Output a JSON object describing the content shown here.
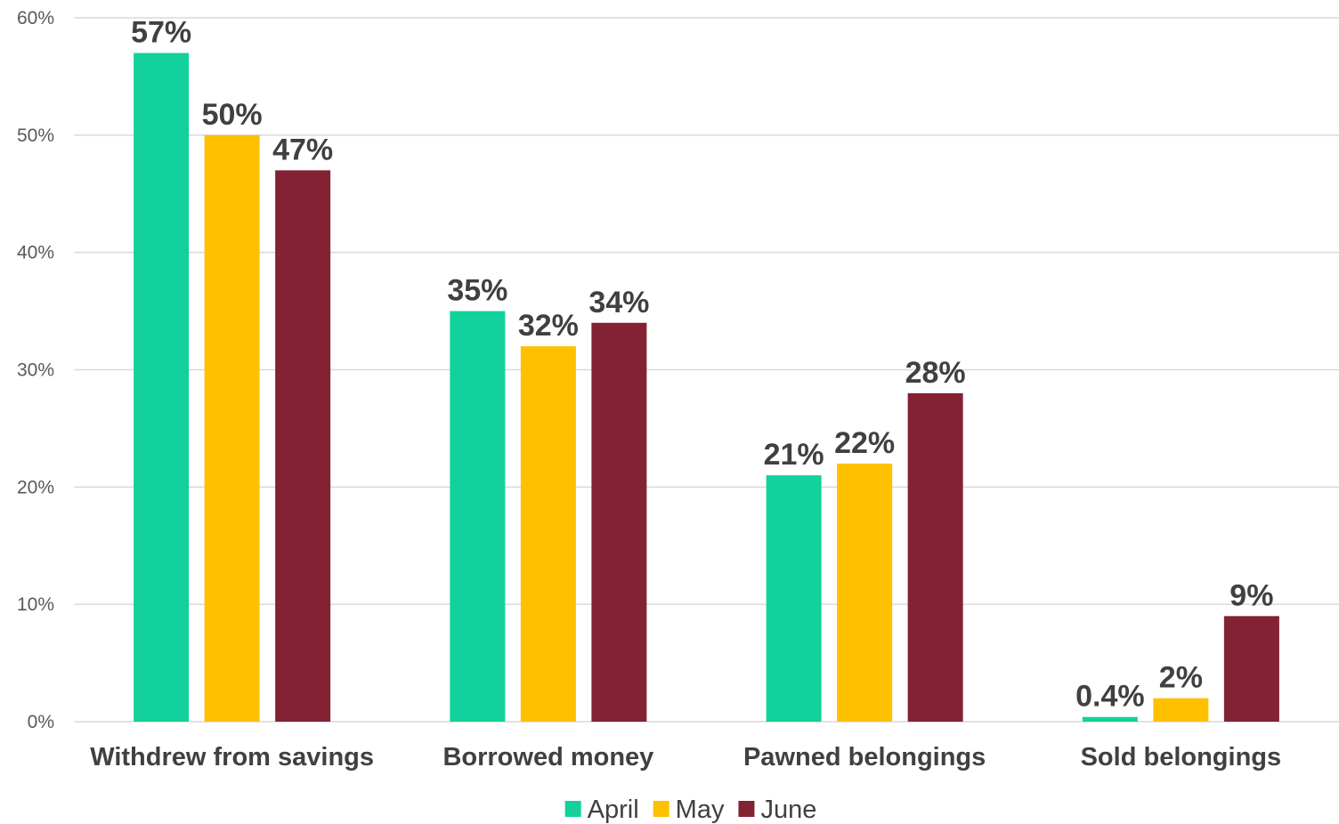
{
  "chart_data": {
    "type": "bar",
    "title": "",
    "xlabel": "",
    "ylabel": "",
    "categories": [
      "Withdrew from savings",
      "Borrowed money",
      "Pawned belongings",
      "Sold belongings"
    ],
    "series": [
      {
        "name": "April",
        "color": "#12d19c",
        "values": [
          57,
          35,
          21,
          0.4
        ],
        "labels": [
          "57%",
          "35%",
          "21%",
          "0.4%"
        ]
      },
      {
        "name": "May",
        "color": "#ffc000",
        "values": [
          50,
          32,
          22,
          2
        ],
        "labels": [
          "50%",
          "32%",
          "22%",
          "2%"
        ]
      },
      {
        "name": "June",
        "color": "#822233",
        "values": [
          47,
          34,
          28,
          9
        ],
        "labels": [
          "47%",
          "34%",
          "28%",
          "9%"
        ]
      }
    ],
    "ylim": [
      0,
      60
    ],
    "yticks": [
      0,
      10,
      20,
      30,
      40,
      50,
      60
    ],
    "ytick_labels": [
      "0%",
      "10%",
      "20%",
      "30%",
      "40%",
      "50%",
      "60%"
    ],
    "grid": true,
    "legend_position": "bottom-center"
  }
}
